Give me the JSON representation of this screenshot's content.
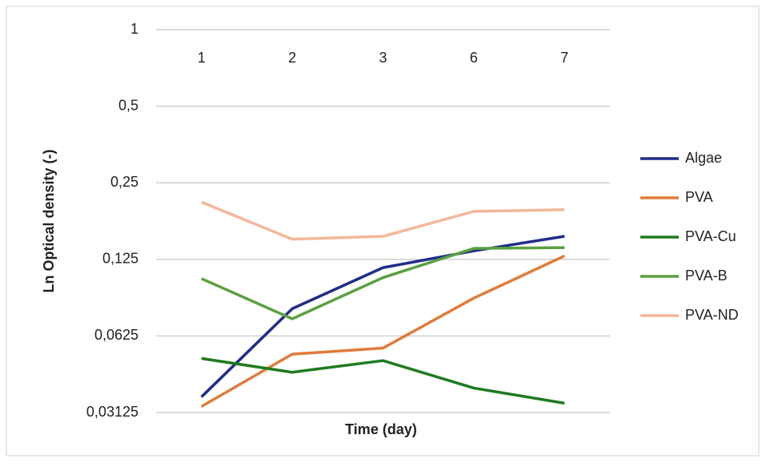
{
  "chart_data": {
    "type": "line",
    "x_label": "Time (day)",
    "y_label": "Ln Optical density (-)",
    "categories": [
      "1",
      "2",
      "3",
      "6",
      "7"
    ],
    "x_labels_position": "top",
    "yscale": "log",
    "ylim": [
      0.03125,
      1
    ],
    "yticks": [
      1,
      {
        "value": 0.5,
        "label": "0,5"
      },
      {
        "value": 0.25,
        "label": "0,25"
      },
      {
        "value": 0.125,
        "label": "0,125"
      },
      {
        "value": 0.0625,
        "label": "0,0625"
      },
      {
        "value": 0.03125,
        "label": "0,03125"
      }
    ],
    "grid": true,
    "legend": "right",
    "series": [
      {
        "name": "Algae",
        "color": "#1f2d8a",
        "values": [
          0.036,
          0.08,
          0.116,
          0.135,
          0.154
        ]
      },
      {
        "name": "PVA",
        "color": "#e07b39",
        "values": [
          0.033,
          0.053,
          0.056,
          0.088,
          0.129
        ]
      },
      {
        "name": "PVA-Cu",
        "color": "#1e7b1e",
        "values": [
          0.051,
          0.045,
          0.05,
          0.039,
          0.034
        ]
      },
      {
        "name": "PVA-B",
        "color": "#5aa040",
        "values": [
          0.105,
          0.073,
          0.106,
          0.138,
          0.139
        ]
      },
      {
        "name": "PVA-ND",
        "color": "#f4b79a",
        "values": [
          0.21,
          0.15,
          0.154,
          0.193,
          0.196
        ]
      }
    ]
  }
}
